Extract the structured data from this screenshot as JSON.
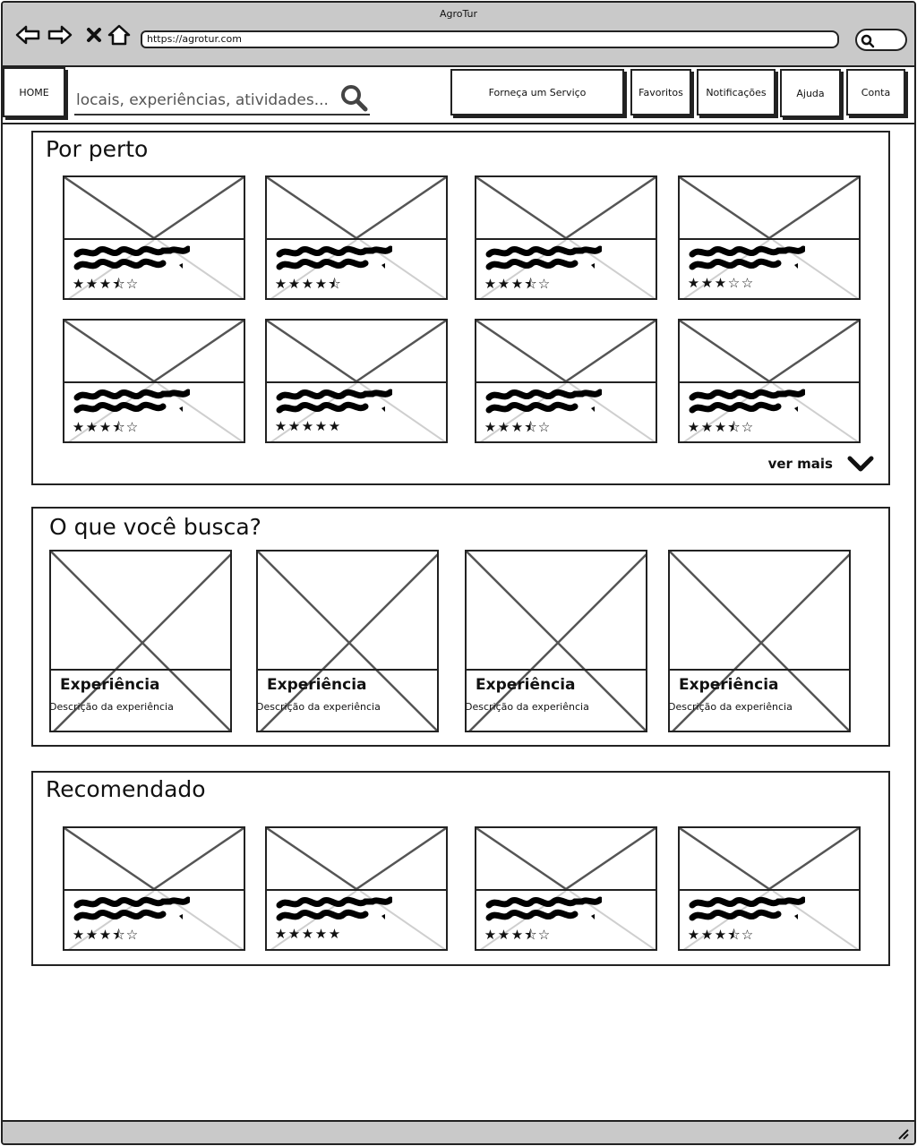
{
  "window": {
    "title": "AgroTur"
  },
  "browser": {
    "url": "https://agrotur.com",
    "icons": [
      "back-arrow-icon",
      "forward-arrow-icon",
      "close-x-icon",
      "home-icon",
      "search-icon"
    ]
  },
  "nav": {
    "home": "HOME",
    "search_placeholder": "locais, experiências, atividades...",
    "provide_service": "Forneça um Serviço",
    "favorites": "Favoritos",
    "notifications": "Notificações",
    "help": "Ajuda",
    "account": "Conta"
  },
  "sections": {
    "nearby": {
      "title": "Por perto",
      "see_more": "ver mais",
      "ratings": [
        3.5,
        4.5,
        3.5,
        3,
        3.5,
        5,
        3.5,
        3.5
      ]
    },
    "search": {
      "title": "O que você busca?",
      "items": [
        {
          "title": "Experiência",
          "description": "Descrição da experiência"
        },
        {
          "title": "Experiência",
          "description": "Descrição da experiência"
        },
        {
          "title": "Experiência",
          "description": "Descrição da experiência"
        },
        {
          "title": "Experiência",
          "description": "Descrição da experiência"
        }
      ]
    },
    "recommended": {
      "title": "Recomendado",
      "ratings": [
        3.5,
        5,
        3.5,
        3.5
      ]
    }
  },
  "colors": {
    "chrome": "#c9c9c9",
    "stroke": "#222222",
    "placeholder_x": "#555555"
  }
}
